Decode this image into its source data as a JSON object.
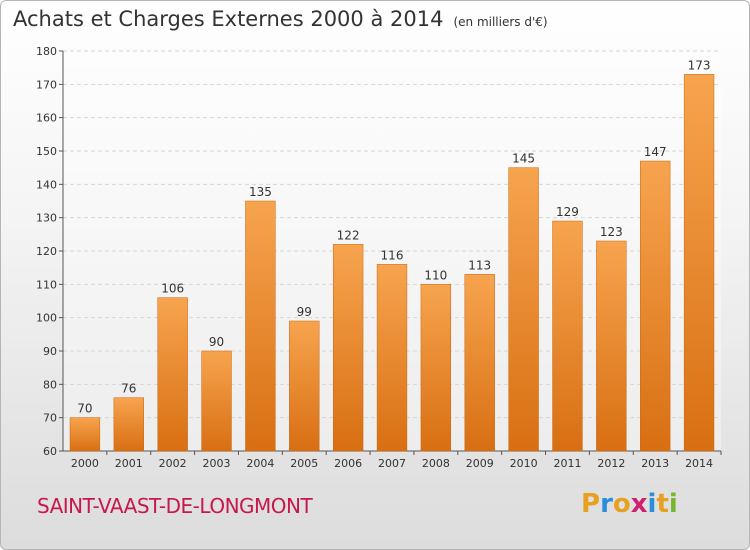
{
  "title": "Achats et Charges Externes 2000 à 2014",
  "unit_note": "(en milliers d'€)",
  "commune": "SAINT-VAAST-DE-LONGMONT",
  "logo": {
    "text": "Proxiti",
    "letter_colors": [
      "#e8a020",
      "#2a8fd8",
      "#e8a020",
      "#d02070",
      "#2a8fd8",
      "#e8a020",
      "#7ab530"
    ]
  },
  "colors": {
    "bar_top": "#f7a44f",
    "bar_bottom": "#d86f12",
    "bar_stroke": "#c9650f",
    "grid": "#d6d6d6",
    "axis": "#555555"
  },
  "chart_data": {
    "type": "bar",
    "title": "Achats et Charges Externes 2000 à 2014",
    "xlabel": "",
    "ylabel": "",
    "ylim": [
      60,
      180
    ],
    "yticks": [
      60,
      70,
      80,
      90,
      100,
      110,
      120,
      130,
      140,
      150,
      160,
      170,
      180
    ],
    "grid": true,
    "categories": [
      "2000",
      "2001",
      "2002",
      "2003",
      "2004",
      "2005",
      "2006",
      "2007",
      "2008",
      "2009",
      "2010",
      "2011",
      "2012",
      "2013",
      "2014"
    ],
    "values": [
      70,
      76,
      106,
      90,
      135,
      99,
      122,
      116,
      110,
      113,
      145,
      129,
      123,
      147,
      173
    ]
  }
}
